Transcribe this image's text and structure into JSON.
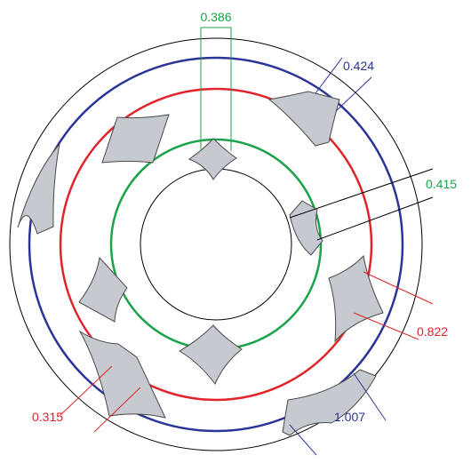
{
  "diagram": {
    "colors": {
      "green": "#1aa34a",
      "red": "#e0242a",
      "blue": "#2b3497",
      "black": "#000000",
      "shape_fill": "#c6c9d0",
      "shape_stroke": "#4a4a4a"
    },
    "labels": {
      "green_top": "0.386",
      "green_right": "0.415",
      "blue_top": "0.424",
      "red_right": "0.822",
      "blue_bottom": "1.007",
      "red_bottom": "0.315"
    }
  }
}
